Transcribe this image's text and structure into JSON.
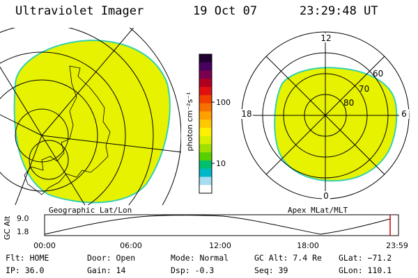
{
  "header": {
    "instrument": "Ultraviolet Imager",
    "date": "19 Oct 07",
    "time": "23:29:48 UT"
  },
  "colors": {
    "aurora_fill": "#e7f200",
    "aurora_edge": "#34d0b0",
    "grid": "#000000",
    "marker": "#cc0000"
  },
  "left_map": {
    "caption": "Geographic Lat/Lon"
  },
  "right_map": {
    "caption": "Apex MLat/MLT",
    "mlt_labels": {
      "top": "12",
      "left": "18",
      "right": "6",
      "bottom": "0"
    },
    "lat_labels": [
      "60",
      "70",
      "80"
    ]
  },
  "colorbar": {
    "unit": "photon cm⁻²s⁻¹",
    "tick_100": "100",
    "tick_10": "10",
    "colors": [
      "#200030",
      "#4a0060",
      "#7a0050",
      "#b00020",
      "#e01010",
      "#f04000",
      "#f87000",
      "#ffa000",
      "#ffc800",
      "#fff000",
      "#d8f000",
      "#a0e000",
      "#58d000",
      "#00c070",
      "#00b8c8",
      "#a8dcf0",
      "#ffffff"
    ]
  },
  "altitude_plot": {
    "ylabel": "GC Alt",
    "ymax_label": "9.0",
    "ymin_label": "1.8",
    "xticks": [
      "00:00",
      "06:00",
      "12:00",
      "18:00",
      "23:59"
    ]
  },
  "info_bar": {
    "flt": "Flt: HOME",
    "ip": "IP: 36.0",
    "door": "Door: Open",
    "gain": "Gain: 14",
    "mode": "Mode: Normal",
    "dsp": "Dsp:    -0.3",
    "gc_alt": "GC Alt: 7.4 Re",
    "seq": "Seq: 39",
    "glat": "GLat: −71.2",
    "glon": "GLon: 110.1"
  }
}
